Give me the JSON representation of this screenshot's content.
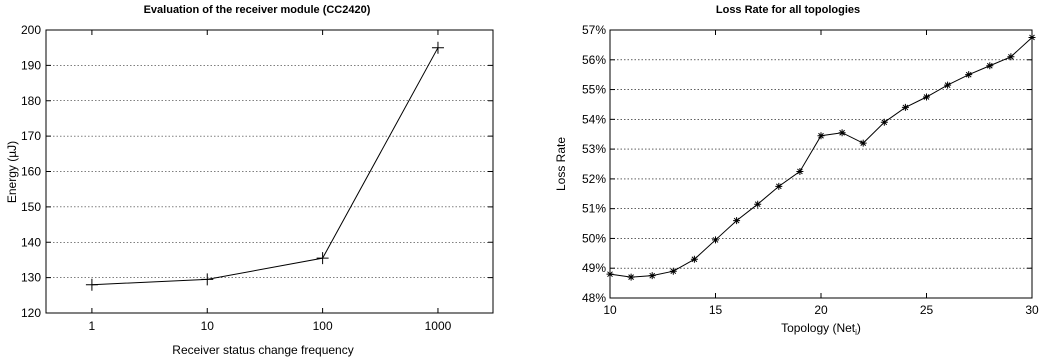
{
  "chart_data": [
    {
      "type": "line",
      "title": "Evaluation of the receiver module (CC2420)",
      "xlabel": "Receiver status change frequency",
      "ylabel": "Energy (µJ)",
      "x_scale": "log",
      "xlim": [
        0.4,
        3000
      ],
      "ylim": [
        120,
        200
      ],
      "xticks": [
        1,
        10,
        100,
        1000
      ],
      "xtick_labels": [
        "1",
        "10",
        "100",
        "1000"
      ],
      "yticks": [
        120,
        130,
        140,
        150,
        160,
        170,
        180,
        190,
        200
      ],
      "ytick_labels": [
        "120",
        "130",
        "140",
        "150",
        "160",
        "170",
        "180",
        "190",
        "200"
      ],
      "grid": "horizontal dotted",
      "marker": "plus",
      "series": [
        {
          "x": [
            1,
            10,
            100,
            1000
          ],
          "y": [
            128,
            129.5,
            135.5,
            195
          ]
        }
      ]
    },
    {
      "type": "line",
      "title": "Loss Rate for all topologies",
      "xlabel_main": "Topology (Net",
      "xlabel_sub": "i",
      "xlabel_end": ")",
      "ylabel": "Loss Rate",
      "xlim": [
        10,
        30
      ],
      "ylim": [
        48,
        57
      ],
      "xticks": [
        10,
        15,
        20,
        25,
        30
      ],
      "xtick_labels": [
        "10",
        "15",
        "20",
        "25",
        "30"
      ],
      "yticks": [
        48,
        49,
        50,
        51,
        52,
        53,
        54,
        55,
        56,
        57
      ],
      "ytick_labels": [
        "48%",
        "49%",
        "50%",
        "51%",
        "52%",
        "53%",
        "54%",
        "55%",
        "56%",
        "57%"
      ],
      "grid": "horizontal dotted",
      "marker": "asterisk",
      "series": [
        {
          "x": [
            10,
            11,
            12,
            13,
            14,
            15,
            16,
            17,
            18,
            19,
            20,
            21,
            22,
            23,
            24,
            25,
            26,
            27,
            28,
            29,
            30
          ],
          "y": [
            48.8,
            48.7,
            48.75,
            48.9,
            49.3,
            49.95,
            50.6,
            51.15,
            51.75,
            52.25,
            53.45,
            53.55,
            53.2,
            53.9,
            54.4,
            54.75,
            55.15,
            55.5,
            55.8,
            56.1,
            56.75
          ]
        }
      ]
    }
  ]
}
